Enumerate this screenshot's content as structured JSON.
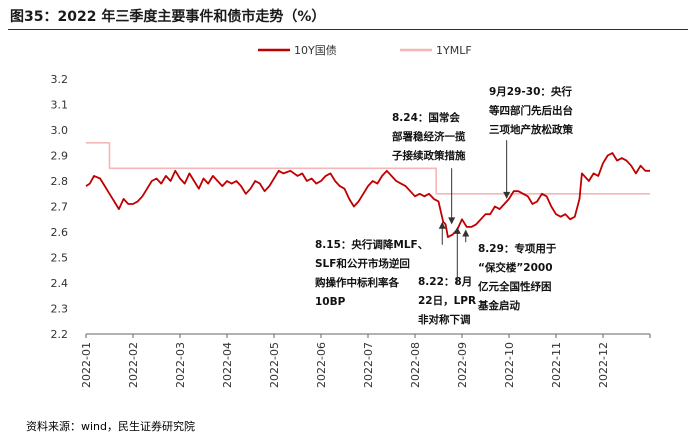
{
  "title": "图35：2022 年三季度主要事件和债市走势（%）",
  "source": "资料来源：wind，民生证券研究院",
  "colors": {
    "y10": "#c00000",
    "mlf": "#f4b6b6",
    "accent": "#9a0000"
  },
  "chart_data": {
    "type": "line",
    "title": "2022 年三季度主要事件和债市走势（%）",
    "xlabel": "",
    "ylabel": "%",
    "ylim": [
      2.2,
      3.2
    ],
    "yticks": [
      "2.2",
      "2.3",
      "2.4",
      "2.5",
      "2.6",
      "2.7",
      "2.8",
      "2.9",
      "3.0",
      "3.1",
      "3.2"
    ],
    "xlim": [
      0,
      12
    ],
    "xticks": [
      "2022-01",
      "2022-02",
      "2022-03",
      "2022-04",
      "2022-05",
      "2022-06",
      "2022-07",
      "2022-08",
      "2022-09",
      "2022-10",
      "2022-11",
      "2022-12"
    ],
    "legend_position": "top",
    "series": [
      {
        "name": "10Y国债",
        "color": "#c00000",
        "points": [
          [
            0.0,
            2.78
          ],
          [
            0.08,
            2.79
          ],
          [
            0.17,
            2.82
          ],
          [
            0.3,
            2.81
          ],
          [
            0.4,
            2.78
          ],
          [
            0.5,
            2.75
          ],
          [
            0.6,
            2.72
          ],
          [
            0.7,
            2.69
          ],
          [
            0.8,
            2.73
          ],
          [
            0.9,
            2.71
          ],
          [
            1.0,
            2.71
          ],
          [
            1.1,
            2.72
          ],
          [
            1.2,
            2.74
          ],
          [
            1.3,
            2.77
          ],
          [
            1.4,
            2.8
          ],
          [
            1.5,
            2.81
          ],
          [
            1.6,
            2.79
          ],
          [
            1.7,
            2.82
          ],
          [
            1.8,
            2.8
          ],
          [
            1.9,
            2.84
          ],
          [
            2.0,
            2.81
          ],
          [
            2.1,
            2.79
          ],
          [
            2.2,
            2.83
          ],
          [
            2.3,
            2.8
          ],
          [
            2.4,
            2.77
          ],
          [
            2.5,
            2.81
          ],
          [
            2.6,
            2.79
          ],
          [
            2.7,
            2.82
          ],
          [
            2.8,
            2.8
          ],
          [
            2.9,
            2.78
          ],
          [
            3.0,
            2.8
          ],
          [
            3.1,
            2.79
          ],
          [
            3.2,
            2.8
          ],
          [
            3.3,
            2.78
          ],
          [
            3.4,
            2.75
          ],
          [
            3.5,
            2.77
          ],
          [
            3.6,
            2.8
          ],
          [
            3.7,
            2.79
          ],
          [
            3.8,
            2.76
          ],
          [
            3.9,
            2.78
          ],
          [
            4.0,
            2.81
          ],
          [
            4.1,
            2.84
          ],
          [
            4.2,
            2.83
          ],
          [
            4.35,
            2.84
          ],
          [
            4.5,
            2.82
          ],
          [
            4.6,
            2.83
          ],
          [
            4.7,
            2.8
          ],
          [
            4.8,
            2.81
          ],
          [
            4.9,
            2.79
          ],
          [
            5.0,
            2.8
          ],
          [
            5.1,
            2.82
          ],
          [
            5.2,
            2.83
          ],
          [
            5.3,
            2.8
          ],
          [
            5.4,
            2.78
          ],
          [
            5.5,
            2.77
          ],
          [
            5.6,
            2.73
          ],
          [
            5.7,
            2.7
          ],
          [
            5.8,
            2.72
          ],
          [
            5.9,
            2.75
          ],
          [
            6.0,
            2.78
          ],
          [
            6.1,
            2.8
          ],
          [
            6.2,
            2.79
          ],
          [
            6.3,
            2.82
          ],
          [
            6.4,
            2.84
          ],
          [
            6.5,
            2.82
          ],
          [
            6.6,
            2.8
          ],
          [
            6.7,
            2.79
          ],
          [
            6.8,
            2.78
          ],
          [
            6.9,
            2.76
          ],
          [
            7.0,
            2.74
          ],
          [
            7.1,
            2.75
          ],
          [
            7.2,
            2.74
          ],
          [
            7.3,
            2.75
          ],
          [
            7.4,
            2.73
          ],
          [
            7.5,
            2.72
          ],
          [
            7.55,
            2.68
          ],
          [
            7.6,
            2.64
          ],
          [
            7.65,
            2.63
          ],
          [
            7.7,
            2.58
          ],
          [
            7.8,
            2.59
          ],
          [
            7.9,
            2.61
          ],
          [
            8.0,
            2.65
          ],
          [
            8.1,
            2.62
          ],
          [
            8.2,
            2.62
          ],
          [
            8.3,
            2.63
          ],
          [
            8.4,
            2.65
          ],
          [
            8.5,
            2.67
          ],
          [
            8.6,
            2.67
          ],
          [
            8.7,
            2.7
          ],
          [
            8.8,
            2.69
          ],
          [
            8.9,
            2.71
          ],
          [
            9.0,
            2.73
          ],
          [
            9.1,
            2.76
          ],
          [
            9.2,
            2.76
          ],
          [
            9.3,
            2.75
          ],
          [
            9.4,
            2.74
          ],
          [
            9.5,
            2.71
          ],
          [
            9.6,
            2.72
          ],
          [
            9.7,
            2.75
          ],
          [
            9.8,
            2.74
          ],
          [
            9.9,
            2.7
          ],
          [
            10.0,
            2.67
          ],
          [
            10.1,
            2.66
          ],
          [
            10.2,
            2.67
          ],
          [
            10.3,
            2.65
          ],
          [
            10.4,
            2.66
          ],
          [
            10.5,
            2.73
          ],
          [
            10.55,
            2.83
          ],
          [
            10.6,
            2.82
          ],
          [
            10.7,
            2.8
          ],
          [
            10.8,
            2.83
          ],
          [
            10.9,
            2.82
          ],
          [
            11.0,
            2.87
          ],
          [
            11.1,
            2.9
          ],
          [
            11.2,
            2.91
          ],
          [
            11.3,
            2.88
          ],
          [
            11.4,
            2.89
          ],
          [
            11.5,
            2.88
          ],
          [
            11.6,
            2.86
          ],
          [
            11.7,
            2.83
          ],
          [
            11.8,
            2.86
          ],
          [
            11.9,
            2.84
          ],
          [
            12.0,
            2.84
          ]
        ]
      },
      {
        "name": "1YMLF",
        "color": "#f4b6b6",
        "points": [
          [
            0.0,
            2.95
          ],
          [
            0.5,
            2.95
          ],
          [
            0.5,
            2.85
          ],
          [
            7.45,
            2.85
          ],
          [
            7.45,
            2.75
          ],
          [
            12.0,
            2.75
          ]
        ]
      }
    ],
    "annotations": [
      {
        "id": "a824",
        "lines": [
          "8.24：国常会",
          "部署稳经济一揽",
          "子接续政策措施"
        ],
        "arrow_x": 7.78,
        "arrow_to": 2.63,
        "arrow_from": 2.85,
        "direction": "down"
      },
      {
        "id": "a929",
        "lines": [
          "9月29-30：央行",
          "等四部门先后出台",
          "三项地产放松政策"
        ],
        "arrow_x": 8.95,
        "arrow_to": 2.73,
        "arrow_from": 2.96,
        "direction": "down"
      },
      {
        "id": "a815",
        "lines": [
          "8.15：央行调降MLF、",
          "SLF和公开市场逆回",
          "购操作中标利率各",
          "10BP"
        ],
        "arrow_x": 7.58,
        "arrow_to": 2.64,
        "arrow_from": 2.55,
        "direction": "up"
      },
      {
        "id": "a822",
        "lines": [
          "8.22：8月",
          "22日，LPR",
          "非对称下调"
        ],
        "arrow_x": 7.9,
        "arrow_to": 2.62,
        "arrow_from": 2.4,
        "direction": "up"
      },
      {
        "id": "a829",
        "lines": [
          "8.29：专项用于",
          "“保交楼”2000",
          "亿元全国性纾困",
          "基金启动"
        ],
        "arrow_x": 8.08,
        "arrow_to": 2.61,
        "arrow_from": 2.56,
        "direction": "up"
      }
    ]
  }
}
